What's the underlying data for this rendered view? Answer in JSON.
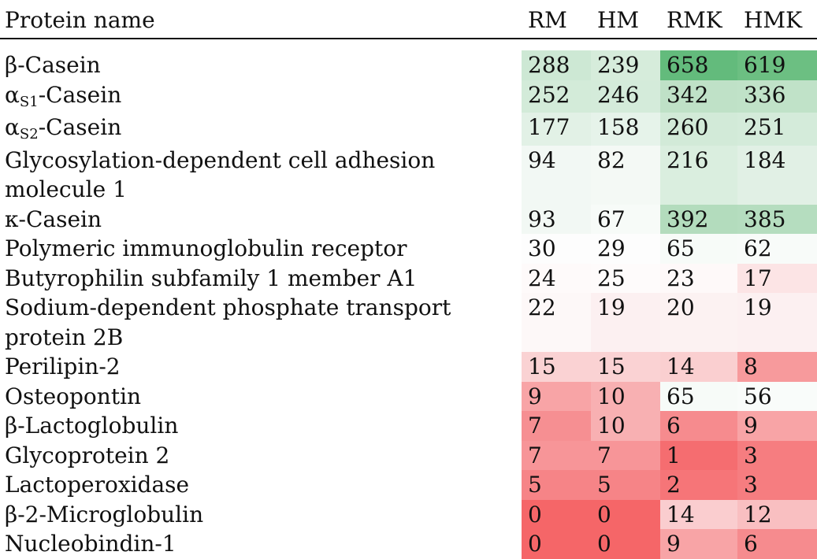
{
  "table": {
    "headers": {
      "name": "Protein name",
      "rm": "RM",
      "hm": "HM",
      "rmk": "RMK",
      "hmk": "HMK"
    },
    "rows": [
      {
        "name_main": "β-Casein",
        "name_sub": "",
        "name_tail": "",
        "values": [
          "288",
          "239",
          "658",
          "619"
        ],
        "colors": [
          "#cde8d4",
          "#d6ecdb",
          "#63bb7c",
          "#6cbf82"
        ]
      },
      {
        "name_main": "α",
        "name_sub": "S1",
        "name_tail": "-Casein",
        "values": [
          "252",
          "246",
          "342",
          "336"
        ],
        "colors": [
          "#d3ebd9",
          "#d4ebda",
          "#bfe1c7",
          "#c0e2c8"
        ]
      },
      {
        "name_main": "α",
        "name_sub": "S2",
        "name_tail": "-Casein",
        "values": [
          "177",
          "158",
          "260",
          "251"
        ],
        "colors": [
          "#e2f1e6",
          "#e6f3ea",
          "#d2ead8",
          "#d4ebda"
        ]
      },
      {
        "name_main": "Glycosylation-dependent cell adhesion molecule 1",
        "name_sub": "",
        "name_tail": "",
        "values": [
          "94",
          "82",
          "216",
          "184"
        ],
        "colors": [
          "#f2f8f4",
          "#f4f9f5",
          "#daeedf",
          "#e1f0e5"
        ]
      },
      {
        "name_main": "κ-Casein",
        "name_sub": "",
        "name_tail": "",
        "values": [
          "93",
          "67",
          "392",
          "385"
        ],
        "colors": [
          "#f2f8f4",
          "#f7fbf8",
          "#b3dcbd",
          "#b5ddbf"
        ]
      },
      {
        "name_main": "Polymeric immunoglobulin receptor",
        "name_sub": "",
        "name_tail": "",
        "values": [
          "30",
          "29",
          "65",
          "62"
        ],
        "colors": [
          "#fdfdfd",
          "#fdfdfd",
          "#f7fbf8",
          "#f8fbf9"
        ]
      },
      {
        "name_main": "Butyrophilin subfamily 1 member A1",
        "name_sub": "",
        "name_tail": "",
        "values": [
          "24",
          "25",
          "23",
          "17"
        ],
        "colors": [
          "#fefafa",
          "#fefbfb",
          "#fef9f9",
          "#fce4e5"
        ]
      },
      {
        "name_main": "Sodium-dependent phosphate transport protein 2B",
        "name_sub": "",
        "name_tail": "",
        "values": [
          "22",
          "19",
          "20",
          "19"
        ],
        "colors": [
          "#fdf8f8",
          "#fcf0f1",
          "#fcf2f2",
          "#fcf0f1"
        ]
      },
      {
        "name_main": "Perilipin-2",
        "name_sub": "",
        "name_tail": "",
        "values": [
          "15",
          "15",
          "14",
          "8"
        ],
        "colors": [
          "#fad2d3",
          "#fad2d3",
          "#facfd0",
          "#f79a9c"
        ]
      },
      {
        "name_main": "Osteopontin",
        "name_sub": "",
        "name_tail": "",
        "values": [
          "9",
          "10",
          "65",
          "56"
        ],
        "colors": [
          "#f8a4a6",
          "#f8b0b2",
          "#f7fbf8",
          "#f9fcfa"
        ]
      },
      {
        "name_main": "β-Lactoglobulin",
        "name_sub": "",
        "name_tail": "",
        "values": [
          "7",
          "10",
          "6",
          "9"
        ],
        "colors": [
          "#f68f92",
          "#f8b0b2",
          "#f68b8e",
          "#f8a4a6"
        ]
      },
      {
        "name_main": "Glycoprotein 2",
        "name_sub": "",
        "name_tail": "",
        "values": [
          "7",
          "7",
          "1",
          "3"
        ],
        "colors": [
          "#f79598",
          "#f79598",
          "#f56d70",
          "#f67d80"
        ]
      },
      {
        "name_main": "Lactoperoxidase",
        "name_sub": "",
        "name_tail": "",
        "values": [
          "5",
          "5",
          "2",
          "3"
        ],
        "colors": [
          "#f68487",
          "#f68487",
          "#f67578",
          "#f67d80"
        ]
      },
      {
        "name_main": "β-2-Microglobulin",
        "name_sub": "",
        "name_tail": "",
        "values": [
          "0",
          "0",
          "14",
          "12"
        ],
        "colors": [
          "#f56668",
          "#f56668",
          "#facdcf",
          "#f9bfc1"
        ]
      },
      {
        "name_main": "Nucleobindin-1",
        "name_sub": "",
        "name_tail": "",
        "values": [
          "0",
          "0",
          "9",
          "6"
        ],
        "colors": [
          "#f56668",
          "#f56668",
          "#f8a4a6",
          "#f68b8e"
        ]
      }
    ]
  }
}
